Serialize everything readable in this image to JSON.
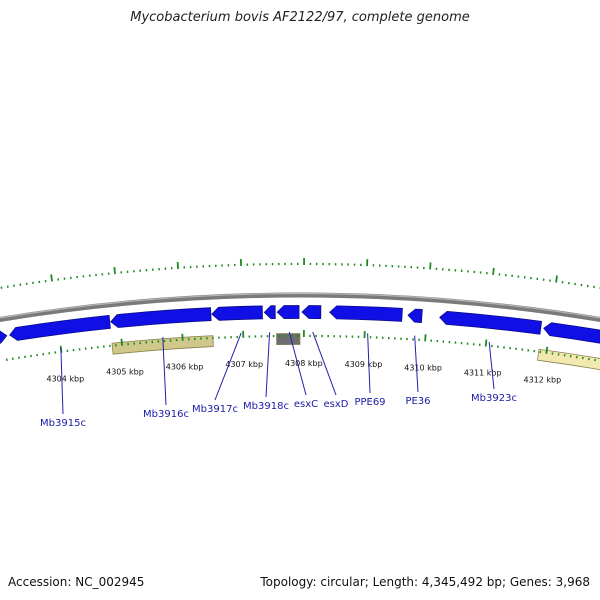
{
  "title": "Mycobacterium bovis AF2122/97, complete genome",
  "footer": {
    "accession": "Accession: NC_002945",
    "summary": "Topology: circular; Length: 4,345,492 bp; Genes: 3,968"
  },
  "colors": {
    "cds": "#1010e6",
    "cds_dark": "#0a0a8a",
    "backbone": "#7a7a7a",
    "tick": "#1f8a1f",
    "feature_khaki": "#cfc88a",
    "feature_light_yellow": "#f1e9b0",
    "feature_gray": "#6e6e6e",
    "label_line": "#2020b0",
    "label_text": "#1a1aa8"
  },
  "scale_labels": [
    "4304 kbp",
    "4305 kbp",
    "4306 kbp",
    "4307 kbp",
    "4308 kbp",
    "4309 kbp",
    "4310 kbp",
    "4311 kbp",
    "4312 kbp"
  ],
  "gene_labels": [
    "Mb3915c",
    "Mb3916c",
    "Mb3917c",
    "Mb3918c",
    "esxC",
    "esxD",
    "PPE69",
    "PE36",
    "Mb3923c"
  ]
}
